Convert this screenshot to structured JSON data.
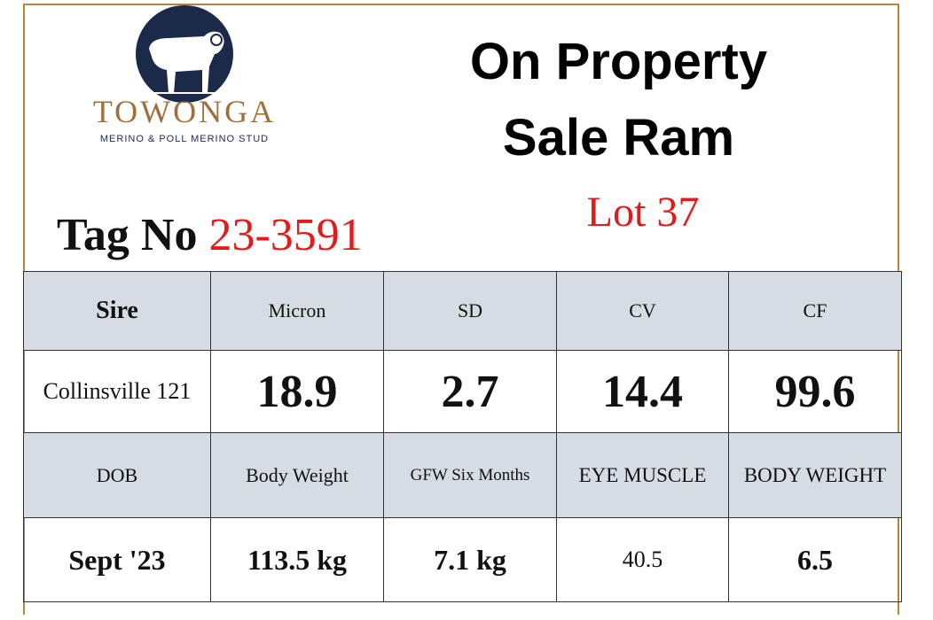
{
  "logo": {
    "name": "TOWONGA",
    "tagline": "MERINO & POLL MERINO STUD"
  },
  "header": {
    "title_line1": "On Property",
    "title_line2": "Sale Ram",
    "lot": "Lot 37",
    "tag_label": "Tag No",
    "tag_number": "23-3591"
  },
  "table": {
    "rows": [
      [
        "Sire",
        "Micron",
        "SD",
        "CV",
        "CF"
      ],
      [
        "Collinsville 121",
        "18.9",
        "2.7",
        "14.4",
        "99.6"
      ],
      [
        "DOB",
        "Body Weight",
        "GFW Six Months",
        "EYE MUSCLE",
        "BODY WEIGHT"
      ],
      [
        "Sept '23",
        "113.5 kg",
        "7.1 kg",
        "40.5",
        "6.5"
      ]
    ]
  }
}
